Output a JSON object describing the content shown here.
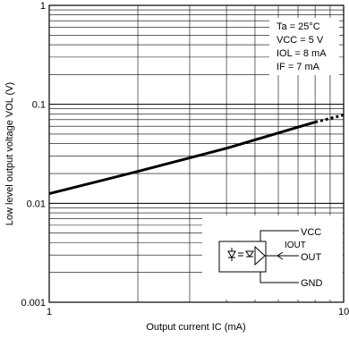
{
  "chart_data": {
    "type": "line",
    "xscale": "log",
    "yscale": "log",
    "xlim": [
      1,
      10
    ],
    "ylim": [
      0.001,
      1
    ],
    "x_tick_labels": [
      "1",
      "10"
    ],
    "y_tick_labels": [
      "0.001",
      "0.01",
      "0.1",
      "1"
    ],
    "xlabel": "Output current IC (mA)",
    "ylabel": "Low level output voltage VOL (V)",
    "grid": true,
    "conditions": [
      "Ta = 25°C",
      "VCC = 5 V",
      "IOL = 8 mA",
      "IF = 7 mA"
    ],
    "series": [
      {
        "style": "solid",
        "x": [
          1,
          2,
          4,
          8
        ],
        "y": [
          0.0125,
          0.021,
          0.036,
          0.066
        ]
      },
      {
        "style": "dotted",
        "x": [
          8,
          10
        ],
        "y": [
          0.066,
          0.078
        ]
      }
    ],
    "inset": {
      "labels": {
        "vcc": "VCC",
        "iout": "IOUT",
        "out": "OUT",
        "gnd": "GND"
      }
    }
  }
}
